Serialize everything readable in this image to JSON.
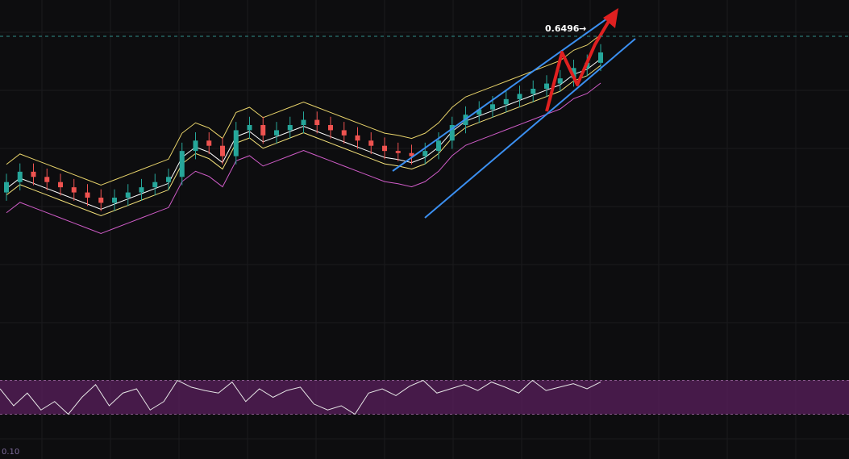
{
  "chart_data": {
    "type": "candlestick",
    "price_label": "0.6496",
    "price_arrow": "→",
    "indicator_value_text": "0.10",
    "watermark": "",
    "colors": {
      "background": "#0d0d0f",
      "up": "#26a69a",
      "down": "#ef5350",
      "bb_upper": "#e8d36a",
      "bb_lower": "#d05cc8",
      "ma_fast": "#ffffff",
      "ma_slow": "#f5e27a",
      "channel": "#3b8ff0",
      "arrow": "#e02020",
      "rsi_band": "#5a1f5e",
      "rsi_line": "#e6e6e6",
      "dashed_level": "#2f8f8a"
    },
    "price_ylim": [
      0.4,
      0.68
    ],
    "candle_closes": [
      0.52,
      0.53,
      0.525,
      0.52,
      0.515,
      0.51,
      0.505,
      0.5,
      0.505,
      0.51,
      0.515,
      0.52,
      0.525,
      0.55,
      0.56,
      0.555,
      0.545,
      0.57,
      0.575,
      0.565,
      0.57,
      0.575,
      0.58,
      0.575,
      0.57,
      0.565,
      0.56,
      0.555,
      0.55,
      0.548,
      0.545,
      0.55,
      0.56,
      0.575,
      0.585,
      0.59,
      0.595,
      0.6,
      0.605,
      0.61,
      0.615,
      0.62,
      0.63,
      0.635,
      0.645
    ],
    "rsi_values": [
      60,
      40,
      55,
      35,
      45,
      30,
      50,
      65,
      40,
      55,
      60,
      35,
      45,
      70,
      62,
      58,
      55,
      68,
      45,
      60,
      50,
      58,
      62,
      42,
      35,
      40,
      30,
      55,
      60,
      52,
      63,
      70,
      55,
      60,
      65,
      58,
      68,
      62,
      55,
      70,
      58,
      62,
      66,
      60,
      68
    ],
    "rsi_band": [
      30,
      70
    ]
  }
}
